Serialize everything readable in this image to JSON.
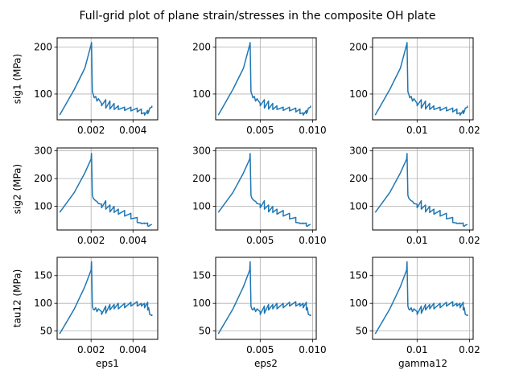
{
  "chart_data": {
    "type": "line",
    "title": "Full-grid plot of plane strain/stresses in the composite OH plate",
    "line_color": "#1f77b4",
    "grid": true,
    "rows": [
      {
        "ylabel": "sig1 (MPa)",
        "ylim": [
          45,
          220
        ],
        "yticks": [
          100,
          200
        ]
      },
      {
        "ylabel": "sig2 (MPa)",
        "ylim": [
          15,
          310
        ],
        "yticks": [
          100,
          200,
          300
        ]
      },
      {
        "ylabel": "tau12 (MPa)",
        "ylim": [
          35,
          183
        ],
        "yticks": [
          50,
          100,
          150
        ]
      }
    ],
    "cols": [
      {
        "xlabel": "eps1",
        "xlim": [
          0.00038,
          0.00518
        ],
        "xticks": [
          0.002,
          0.004
        ],
        "xtick_labels": [
          "0.002",
          "0.004"
        ]
      },
      {
        "xlabel": "eps2",
        "xlim": [
          0.00075,
          0.01035
        ],
        "xticks": [
          0.005,
          0.01
        ],
        "xtick_labels": [
          "0.005",
          "0.010"
        ]
      },
      {
        "xlabel": "gamma12",
        "xlim": [
          0.0015,
          0.0207
        ],
        "xticks": [
          0.01,
          0.02
        ],
        "xtick_labels": [
          "0.01",
          "0.02"
        ]
      }
    ],
    "series": [
      {
        "x": [
          0.0005,
          0.0012,
          0.0017,
          0.002,
          0.00202,
          0.00206,
          0.0021,
          0.00215,
          0.00222,
          0.00228,
          0.00235,
          0.0025,
          0.0025,
          0.0027,
          0.0027,
          0.0029,
          0.0029,
          0.0031,
          0.0031,
          0.0033,
          0.0033,
          0.0036,
          0.0036,
          0.0039,
          0.0039,
          0.0042,
          0.0042,
          0.0044,
          0.0044,
          0.00455,
          0.00455,
          0.0047,
          0.0047,
          0.00475,
          0.0048,
          0.0049,
          0.0049
        ],
        "sig1": [
          55,
          110,
          155,
          205,
          210,
          105,
          100,
          92,
          95,
          85,
          90,
          80,
          75,
          88,
          70,
          85,
          68,
          80,
          67,
          75,
          67,
          72,
          65,
          72,
          64,
          70,
          62,
          68,
          58,
          60,
          55,
          65,
          58,
          62,
          70,
          72,
          75
        ],
        "sig2": [
          78,
          150,
          220,
          270,
          290,
          140,
          130,
          125,
          120,
          118,
          110,
          108,
          95,
          120,
          90,
          105,
          80,
          100,
          78,
          90,
          72,
          85,
          65,
          75,
          55,
          60,
          42,
          40,
          38,
          40,
          38,
          40,
          30,
          28,
          32,
          35,
          35
        ],
        "tau12": [
          45,
          90,
          130,
          160,
          175,
          95,
          90,
          88,
          92,
          85,
          90,
          85,
          80,
          95,
          82,
          98,
          88,
          98,
          90,
          100,
          90,
          100,
          92,
          102,
          95,
          103,
          95,
          100,
          95,
          100,
          92,
          102,
          88,
          92,
          80,
          78,
          80
        ]
      }
    ]
  }
}
